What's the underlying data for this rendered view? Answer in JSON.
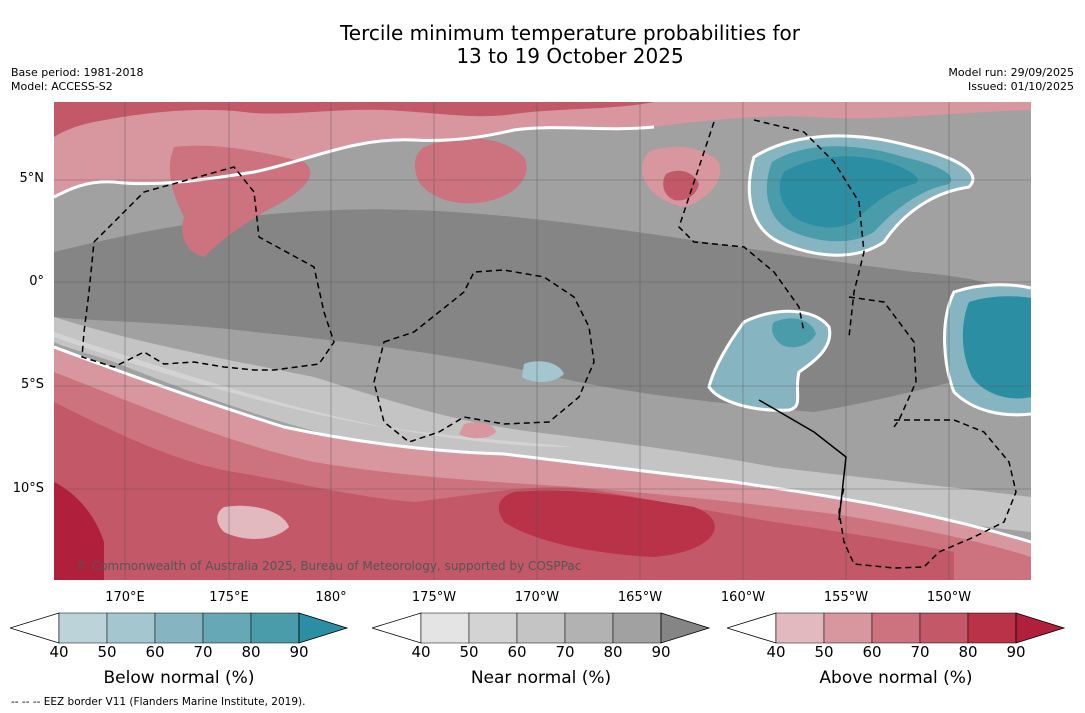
{
  "title_line1": "Tercile minimum temperature probabilities for",
  "title_line2": "13 to 19 October 2025",
  "base_period": "Base period: 1981-2018",
  "model": "Model: ACCESS-S2",
  "model_run": "Model run: 29/09/2025",
  "issued": "Issued: 01/10/2025",
  "lat_labels": [
    "5°N",
    "0°",
    "5°S",
    "10°S"
  ],
  "lon_labels": [
    "170°E",
    "175°E",
    "180°",
    "175°W",
    "170°W",
    "165°W",
    "160°W",
    "155°W",
    "150°W"
  ],
  "copyright": "© Commonwealth of Australia 2025, Bureau of Meteorology, supported by COSPPac",
  "colorbars": [
    {
      "title": "Below normal (%)",
      "ticks": [
        "40",
        "50",
        "60",
        "70",
        "80",
        "90"
      ],
      "colors": [
        "#ffffff",
        "#bcd3da",
        "#a4c7cf",
        "#86b5c1",
        "#67a8b6",
        "#4a9cab",
        "#2b8ea2"
      ]
    },
    {
      "title": "Near normal (%)",
      "ticks": [
        "40",
        "50",
        "60",
        "70",
        "80",
        "90"
      ],
      "colors": [
        "#ffffff",
        "#e4e4e4",
        "#d3d3d3",
        "#c4c4c4",
        "#b2b2b2",
        "#a1a1a1",
        "#858585"
      ]
    },
    {
      "title": "Above normal (%)",
      "ticks": [
        "40",
        "50",
        "60",
        "70",
        "80",
        "90"
      ],
      "colors": [
        "#ffffff",
        "#e2b9bf",
        "#d8969e",
        "#cc737f",
        "#c35868",
        "#b93247",
        "#b01f3b"
      ]
    }
  ],
  "footnote": "--  --  -- EEZ border V11 (Flanders Marine Institute, 2019)."
}
